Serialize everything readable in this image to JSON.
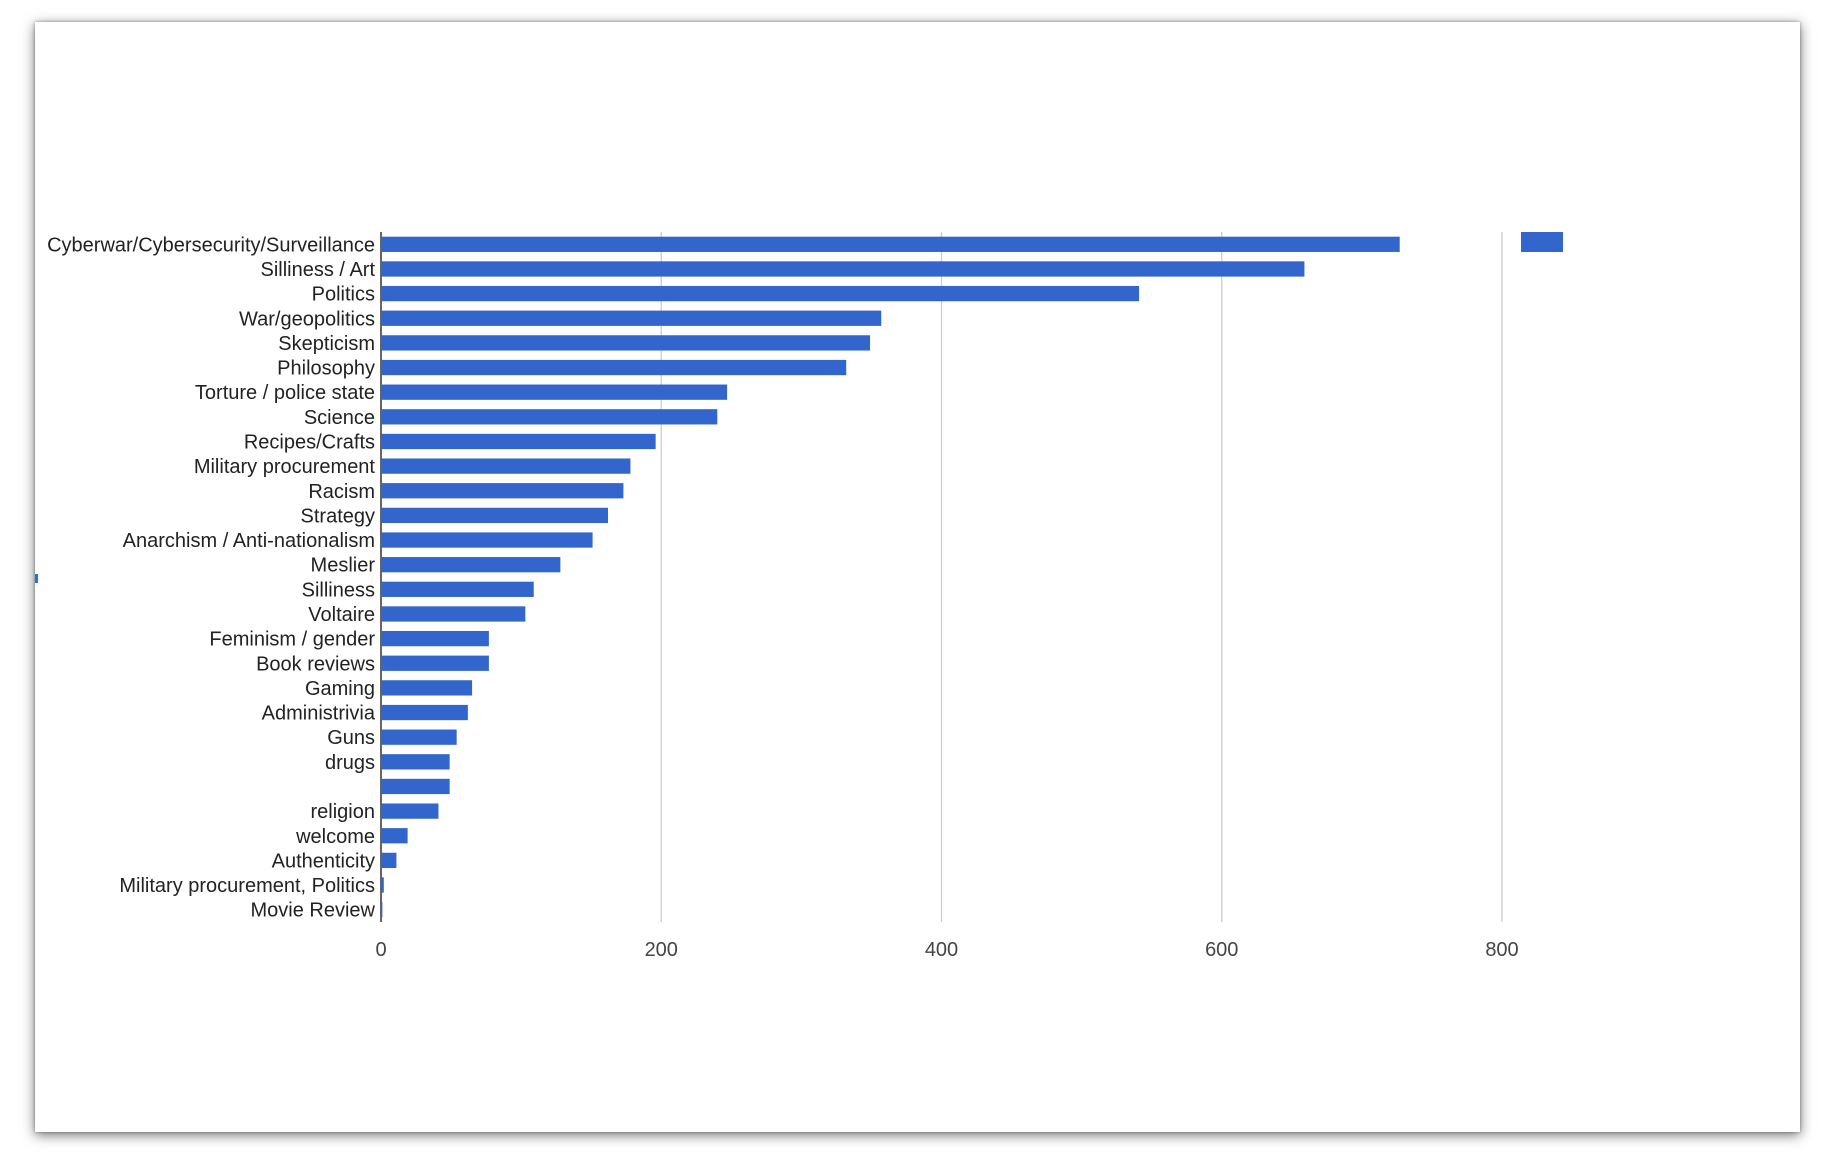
{
  "chart_data": {
    "type": "bar",
    "orientation": "horizontal",
    "categories": [
      "Cyberwar/Cybersecurity/Surveillance",
      "Silliness / Art",
      "Politics",
      "War/geopolitics",
      "Skepticism",
      "Philosophy",
      "Torture / police state",
      "Science",
      "Recipes/Crafts",
      "Military procurement",
      "Racism",
      "Strategy",
      "Anarchism / Anti-nationalism",
      "Meslier",
      "Silliness",
      "Voltaire",
      "Feminism / gender",
      "Book reviews",
      "Gaming",
      "Administrivia",
      "Guns",
      "drugs",
      "",
      "religion",
      "welcome",
      "Authenticity",
      "Military procurement, Politics",
      "Movie Review"
    ],
    "values": [
      727,
      659,
      541,
      357,
      349,
      332,
      247,
      240,
      196,
      178,
      173,
      162,
      151,
      128,
      109,
      103,
      77,
      77,
      65,
      62,
      54,
      49,
      49,
      41,
      19,
      11,
      2,
      1
    ],
    "xlim": [
      0,
      1000
    ],
    "xticks": [
      0,
      200,
      400,
      600,
      800
    ],
    "grid": true,
    "legend": "top-right",
    "bar_color": "#3366cc",
    "gridline_color": "#cccccc",
    "title": "",
    "xlabel": "",
    "ylabel": ""
  }
}
